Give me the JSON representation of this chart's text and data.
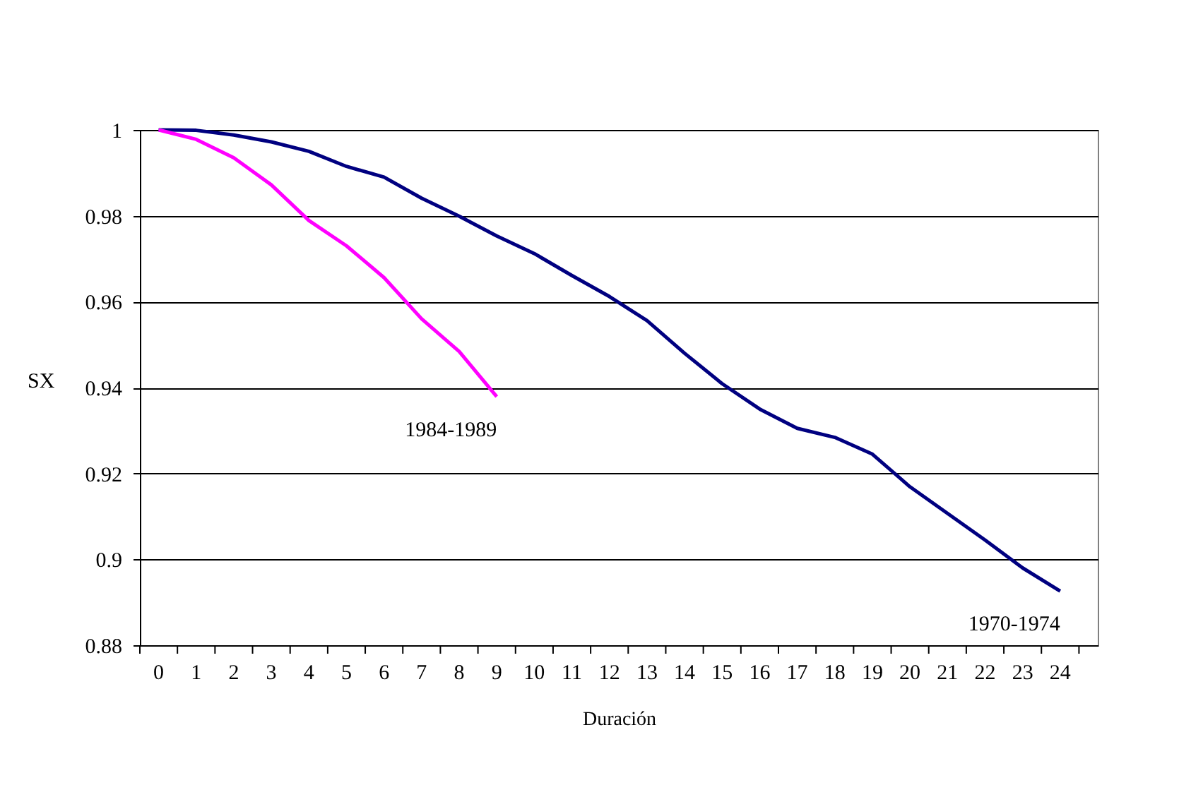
{
  "chart_data": {
    "type": "line",
    "xlabel": "Duración",
    "ylabel": "SX",
    "x": [
      0,
      1,
      2,
      3,
      4,
      5,
      6,
      7,
      8,
      9,
      10,
      11,
      12,
      13,
      14,
      15,
      16,
      17,
      18,
      19,
      20,
      21,
      22,
      23,
      24
    ],
    "series": [
      {
        "name": "1970-1974",
        "color": "#000080",
        "values": [
          1.0,
          0.9999,
          0.9988,
          0.9972,
          0.995,
          0.9915,
          0.989,
          0.9841,
          0.9799,
          0.9753,
          0.9712,
          0.9661,
          0.9612,
          0.9556,
          0.948,
          0.9409,
          0.935,
          0.9305,
          0.9284,
          0.9245,
          0.9169,
          0.9107,
          0.9045,
          0.898,
          0.8926
        ]
      },
      {
        "name": "1984-1989",
        "color": "#ff00ff",
        "values": [
          1.0,
          0.9978,
          0.9935,
          0.9872,
          0.9789,
          0.973,
          0.9656,
          0.956,
          0.9484,
          0.9379,
          null,
          null,
          null,
          null,
          null,
          null,
          null,
          null,
          null,
          null,
          null,
          null,
          null,
          null,
          null
        ]
      }
    ],
    "xlim": [
      -0.5,
      25
    ],
    "xticks": [
      0,
      1,
      2,
      3,
      4,
      5,
      6,
      7,
      8,
      9,
      10,
      11,
      12,
      13,
      14,
      15,
      16,
      17,
      18,
      19,
      20,
      21,
      22,
      23,
      24,
      {
        "value": -0.5,
        "label": null
      },
      {
        "value": 0.5,
        "label": null
      },
      {
        "value": 1.5,
        "label": null
      },
      {
        "value": 2.5,
        "label": null
      },
      {
        "value": 3.5,
        "label": null
      },
      {
        "value": 4.5,
        "label": null
      },
      {
        "value": 5.5,
        "label": null
      },
      {
        "value": 6.5,
        "label": null
      },
      {
        "value": 7.5,
        "label": null
      },
      {
        "value": 8.5,
        "label": null
      },
      {
        "value": 9.5,
        "label": null
      },
      {
        "value": 10.5,
        "label": null
      },
      {
        "value": 11.5,
        "label": null
      },
      {
        "value": 12.5,
        "label": null
      },
      {
        "value": 13.5,
        "label": null
      },
      {
        "value": 14.5,
        "label": null
      },
      {
        "value": 15.5,
        "label": null
      },
      {
        "value": 16.5,
        "label": null
      },
      {
        "value": 17.5,
        "label": null
      },
      {
        "value": 18.5,
        "label": null
      },
      {
        "value": 19.5,
        "label": null
      },
      {
        "value": 20.5,
        "label": null
      },
      {
        "value": 21.5,
        "label": null
      },
      {
        "value": 22.5,
        "label": null
      },
      {
        "value": 23.5,
        "label": null
      },
      {
        "value": 24.5,
        "label": null
      }
    ],
    "ylim": [
      0.88,
      1
    ],
    "yticks": [
      0.88,
      0.9,
      0.92,
      0.94,
      0.96,
      0.98,
      1
    ],
    "grid": "y",
    "marker": "none",
    "line_style": "solid"
  }
}
